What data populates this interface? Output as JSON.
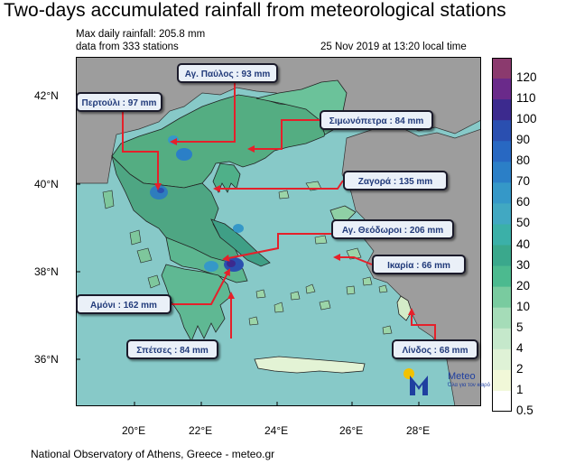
{
  "title": "Two-days accumulated rainfall from meteorological stations",
  "max_daily": "Max daily rainfall: 205.8 mm",
  "data_from": "data from 333 stations",
  "timestamp": "25 Nov 2019 at 13:20 local time",
  "footer": "National Observatory of Athens, Greece - meteo.gr",
  "logo": {
    "name": "Meteo",
    "tagline": "Όλα για τον καιρό"
  },
  "lat_labels": [
    "42°N",
    "40°N",
    "38°N",
    "36°N"
  ],
  "lon_labels": [
    "20°E",
    "22°E",
    "24°E",
    "26°E",
    "28°E"
  ],
  "colorbar": {
    "levels": [
      "120",
      "110",
      "100",
      "90",
      "80",
      "70",
      "60",
      "50",
      "40",
      "30",
      "20",
      "10",
      "5",
      "4",
      "2",
      "1",
      "0.5"
    ],
    "colors": [
      "#8b3a6e",
      "#6a2a8a",
      "#3c2a8e",
      "#2a4fb0",
      "#2868c2",
      "#2b7fc7",
      "#3598c8",
      "#41a8c2",
      "#3bb0a8",
      "#3aa88c",
      "#4cba8f",
      "#79cb9f",
      "#a5dcb8",
      "#c5e8cb",
      "#dff2d6",
      "#f1f8d8",
      "#ffffff"
    ]
  },
  "callouts": [
    {
      "label": "Αγ. Παύλος : 93 mm"
    },
    {
      "label": "Περτούλι : 97 mm"
    },
    {
      "label": "Σιμωνόπετρα : 84 mm"
    },
    {
      "label": "Ζαγορά : 135 mm"
    },
    {
      "label": "Αγ. Θεόδωροι : 206 mm"
    },
    {
      "label": "Ικαρία : 66 mm"
    },
    {
      "label": "Αμόνι : 162 mm"
    },
    {
      "label": "Σπέτσες : 84 mm"
    },
    {
      "label": "Λίνδος : 68 mm"
    }
  ],
  "colors": {
    "sea": "#87c9c8",
    "land_outside": "#9c9c9c",
    "arrow": "#e5202a"
  }
}
